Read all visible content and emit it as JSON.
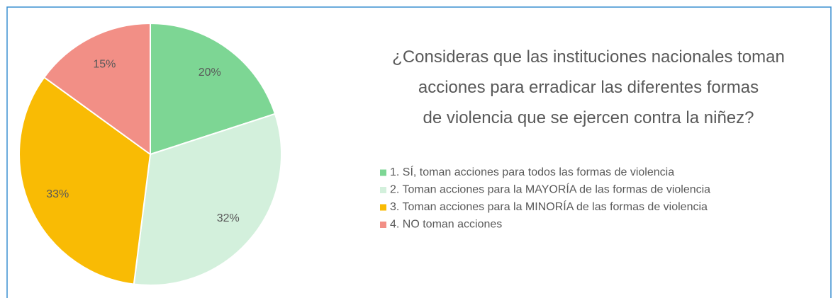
{
  "chart_data": {
    "type": "pie",
    "title": "¿Consideras que las instituciones nacionales toman acciones para erradicar las diferentes formas de violencia que se ejercen contra la niñez?",
    "categories": [
      "1. SÍ, toman acciones para todos las formas de violencia",
      "2. Toman acciones para la MAYORÍA de las formas de violencia",
      "3. Toman acciones para la MINORÍA de las formas de violencia",
      "4. NO toman acciones"
    ],
    "values": [
      20,
      32,
      33,
      15
    ],
    "value_labels": [
      "20%",
      "32%",
      "33%",
      "15%"
    ],
    "colors": [
      "#7dd694",
      "#d3f0dc",
      "#f9bb04",
      "#f28f86"
    ],
    "legend": "right"
  }
}
